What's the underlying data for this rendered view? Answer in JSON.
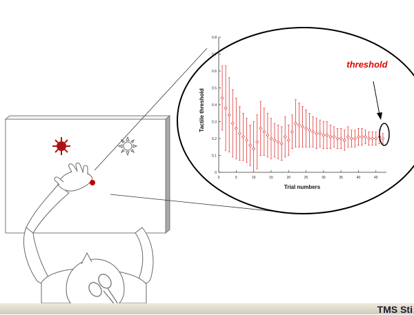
{
  "annotation": {
    "label": "threshold",
    "color": "#e00000"
  },
  "footer": {
    "text": "TMS Sti"
  },
  "colors": {
    "data_color": "#e03030",
    "red_light": "#b01010",
    "finger_dot": "#c00000"
  },
  "icons": {
    "red_light": "red-sun-light-icon",
    "white_light": "white-sun-light-icon"
  },
  "chart_data": {
    "type": "scatter",
    "xlabel": "Trial numbers",
    "ylabel": "Tactile threshold",
    "xlim": [
      0,
      48
    ],
    "ylim": [
      0,
      0.8
    ],
    "xticks": [
      0,
      5,
      10,
      15,
      20,
      25,
      30,
      35,
      40,
      45
    ],
    "yticks": [
      0,
      0.1,
      0.2,
      0.3,
      0.4,
      0.5,
      0.6,
      0.7,
      0.8
    ],
    "grid": false,
    "error_bars": true,
    "series": [
      {
        "x": [
          1,
          2,
          3,
          4,
          5,
          6,
          7,
          8,
          9,
          10,
          11,
          12,
          13,
          14,
          15,
          16,
          17,
          18,
          19,
          20,
          21,
          22,
          23,
          24,
          25,
          26,
          27,
          28,
          29,
          30,
          31,
          32,
          33,
          34,
          35,
          36,
          37,
          38,
          39,
          40,
          41,
          42,
          43,
          44,
          45,
          46,
          47
        ],
        "values": [
          0.44,
          0.38,
          0.34,
          0.29,
          0.26,
          0.23,
          0.21,
          0.19,
          0.16,
          0.14,
          0.18,
          0.26,
          0.24,
          0.22,
          0.2,
          0.19,
          0.18,
          0.17,
          0.21,
          0.19,
          0.24,
          0.29,
          0.28,
          0.27,
          0.26,
          0.25,
          0.24,
          0.23,
          0.23,
          0.22,
          0.22,
          0.21,
          0.21,
          0.2,
          0.2,
          0.19,
          0.21,
          0.2,
          0.2,
          0.21,
          0.21,
          0.21,
          0.2,
          0.2,
          0.2,
          0.21,
          0.2
        ],
        "errors": [
          0.19,
          0.25,
          0.22,
          0.2,
          0.18,
          0.16,
          0.14,
          0.13,
          0.12,
          0.16,
          0.16,
          0.16,
          0.14,
          0.13,
          0.12,
          0.1,
          0.1,
          0.1,
          0.12,
          0.09,
          0.1,
          0.14,
          0.13,
          0.12,
          0.11,
          0.1,
          0.09,
          0.09,
          0.08,
          0.08,
          0.08,
          0.07,
          0.06,
          0.06,
          0.06,
          0.06,
          0.06,
          0.05,
          0.05,
          0.05,
          0.05,
          0.04,
          0.04,
          0.04,
          0.04,
          0.04,
          0.03
        ]
      }
    ]
  }
}
